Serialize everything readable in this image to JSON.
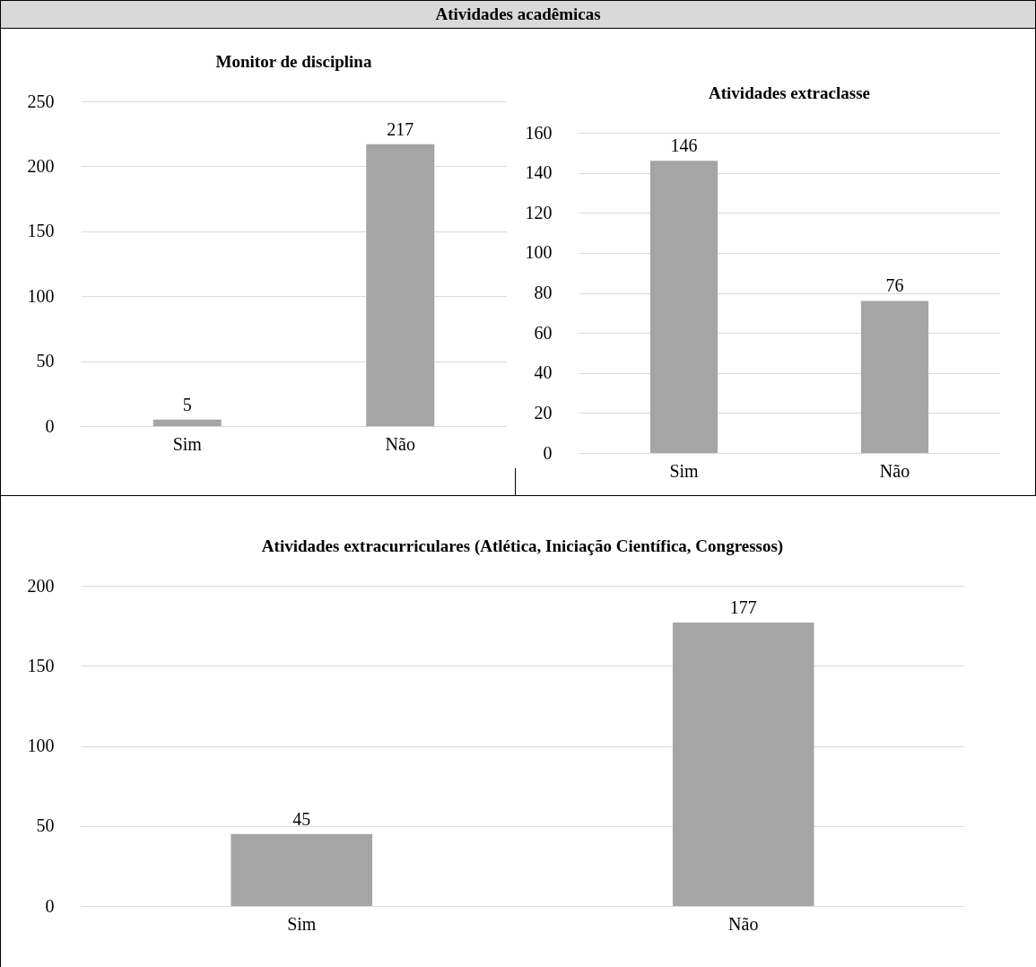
{
  "chart_data": [
    {
      "type": "other",
      "title": "Atividades acadêmicas"
    },
    {
      "type": "bar",
      "title": "Monitor de disciplina",
      "categories": [
        "Sim",
        "Não"
      ],
      "values": [
        5,
        217
      ],
      "color": "#a5a5a5",
      "ylim": [
        0,
        250
      ],
      "yticks": [
        0,
        50,
        100,
        150,
        200,
        250
      ],
      "grid": "y",
      "data_labels": true
    },
    {
      "type": "bar",
      "title": "Atividades extraclasse",
      "categories": [
        "Sim",
        "Não"
      ],
      "values": [
        146,
        76
      ],
      "color": "#a5a5a5",
      "ylim": [
        0,
        160
      ],
      "yticks": [
        0,
        20,
        40,
        60,
        80,
        100,
        120,
        140,
        160
      ],
      "grid": "y",
      "data_labels": true
    },
    {
      "type": "bar",
      "title": "Atividades extracurriculares (Atlética, Iniciação Científica, Congressos)",
      "categories": [
        "Sim",
        "Não"
      ],
      "values": [
        45,
        177
      ],
      "color": "#a5a5a5",
      "ylim": [
        0,
        200
      ],
      "yticks": [
        0,
        50,
        100,
        150,
        200
      ],
      "grid": "y",
      "data_labels": true
    }
  ]
}
